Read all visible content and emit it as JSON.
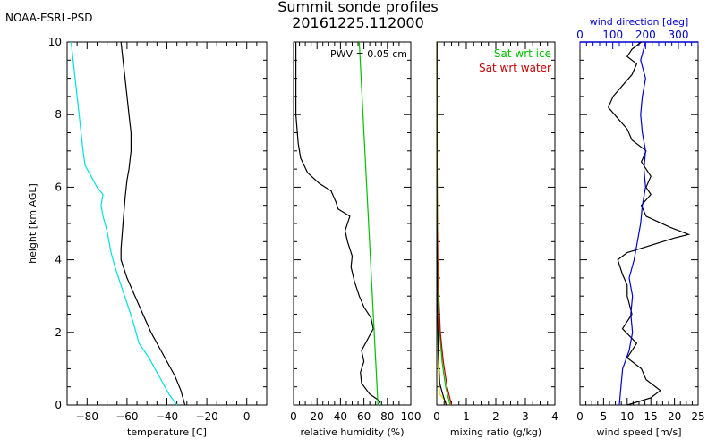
{
  "header": {
    "org": "NOAA-ESRL-PSD",
    "title_line1": "Summit sonde profiles",
    "title_line2": "20161225.112000"
  },
  "chart_data": [
    {
      "type": "line",
      "panel": "temperature",
      "xlabel": "temperature [C]",
      "ylabel": "height [km AGL]",
      "xlim": [
        -90,
        10
      ],
      "ylim": [
        0,
        10
      ],
      "xticks": [
        -80,
        -60,
        -40,
        -20,
        0
      ],
      "yticks": [
        0,
        2,
        4,
        6,
        8,
        10
      ],
      "series": [
        {
          "color": "#000000",
          "points": [
            [
              -31,
              0
            ],
            [
              -33,
              0.4
            ],
            [
              -36,
              0.8
            ],
            [
              -40,
              1.2
            ],
            [
              -44,
              1.6
            ],
            [
              -48,
              2.0
            ],
            [
              -52,
              2.5
            ],
            [
              -56,
              3.0
            ],
            [
              -60,
              3.5
            ],
            [
              -63,
              4.0
            ],
            [
              -63,
              4.3
            ],
            [
              -62,
              5.0
            ],
            [
              -61,
              5.7
            ],
            [
              -60,
              6.2
            ],
            [
              -59,
              6.5
            ],
            [
              -58,
              7.0
            ],
            [
              -58,
              7.5
            ],
            [
              -59,
              8.0
            ],
            [
              -60,
              8.5
            ],
            [
              -61,
              9.0
            ],
            [
              -62,
              9.5
            ],
            [
              -63,
              10.0
            ]
          ]
        },
        {
          "color": "#00e0e0",
          "points": [
            [
              -35,
              0
            ],
            [
              -39,
              0.3
            ],
            [
              -44,
              0.8
            ],
            [
              -49,
              1.3
            ],
            [
              -54,
              1.7
            ],
            [
              -57,
              2.3
            ],
            [
              -60,
              2.8
            ],
            [
              -63,
              3.3
            ],
            [
              -66,
              3.8
            ],
            [
              -68,
              4.2
            ],
            [
              -69,
              4.5
            ],
            [
              -70,
              4.8
            ],
            [
              -72,
              5.2
            ],
            [
              -73,
              5.5
            ],
            [
              -72,
              5.8
            ],
            [
              -75,
              6.0
            ],
            [
              -78,
              6.3
            ],
            [
              -81,
              6.6
            ],
            [
              -82,
              7.0
            ],
            [
              -83,
              7.5
            ],
            [
              -84,
              8.0
            ],
            [
              -85,
              8.5
            ],
            [
              -86,
              9.0
            ],
            [
              -87,
              9.5
            ],
            [
              -88,
              10.0
            ]
          ]
        }
      ]
    },
    {
      "type": "line",
      "panel": "relative humidity",
      "xlabel": "relative humidity (%)",
      "xlim": [
        0,
        100
      ],
      "ylim": [
        0,
        10
      ],
      "xticks": [
        0,
        20,
        40,
        60,
        80,
        100
      ],
      "annotation": "PWV = 0.05 cm",
      "series": [
        {
          "color": "#000000",
          "points": [
            [
              72,
              0
            ],
            [
              74,
              0.1
            ],
            [
              65,
              0.3
            ],
            [
              58,
              0.6
            ],
            [
              57,
              0.9
            ],
            [
              60,
              1.2
            ],
            [
              58,
              1.5
            ],
            [
              63,
              1.8
            ],
            [
              68,
              2.1
            ],
            [
              66,
              2.4
            ],
            [
              60,
              2.7
            ],
            [
              56,
              3.0
            ],
            [
              52,
              3.4
            ],
            [
              49,
              3.8
            ],
            [
              50,
              4.1
            ],
            [
              46,
              4.5
            ],
            [
              44,
              4.8
            ],
            [
              48,
              5.2
            ],
            [
              38,
              5.4
            ],
            [
              36,
              5.6
            ],
            [
              32,
              5.9
            ],
            [
              22,
              6.1
            ],
            [
              12,
              6.4
            ],
            [
              6,
              6.8
            ],
            [
              4,
              7.2
            ],
            [
              3,
              7.6
            ],
            [
              2,
              8.0
            ],
            [
              2,
              9.0
            ],
            [
              2,
              10.0
            ]
          ]
        },
        {
          "color": "#00c000",
          "points": [
            [
              72,
              0
            ],
            [
              56,
              10
            ]
          ]
        }
      ]
    },
    {
      "type": "line",
      "panel": "mixing ratio",
      "xlabel": "mixing ratio (g/kg)",
      "xlim": [
        0,
        4
      ],
      "ylim": [
        0,
        10
      ],
      "xticks": [
        0,
        1,
        2,
        3,
        4
      ],
      "series": [
        {
          "name": "Sat wrt ice",
          "color": "#00c000",
          "points": [
            [
              0.45,
              0
            ],
            [
              0.3,
              0.5
            ],
            [
              0.18,
              1.2
            ],
            [
              0.1,
              2.0
            ],
            [
              0.05,
              3.0
            ],
            [
              0.02,
              4.0
            ],
            [
              0.01,
              5.5
            ],
            [
              0.005,
              7.0
            ],
            [
              0.003,
              10.0
            ]
          ]
        },
        {
          "name": "Sat wrt water",
          "color": "#c00000",
          "points": [
            [
              0.5,
              0
            ],
            [
              0.35,
              0.5
            ],
            [
              0.22,
              1.2
            ],
            [
              0.12,
              2.0
            ],
            [
              0.07,
              3.0
            ],
            [
              0.04,
              4.0
            ],
            [
              0.02,
              5.5
            ],
            [
              0.01,
              7.0
            ],
            [
              0.006,
              10.0
            ]
          ]
        },
        {
          "color": "#e0e000",
          "points": [
            [
              0.35,
              0
            ],
            [
              0.3,
              0.1
            ],
            [
              0.2,
              0.2
            ],
            [
              0.1,
              0.3
            ],
            [
              0.05,
              1.0
            ],
            [
              0.02,
              4.0
            ],
            [
              0.01,
              10.0
            ]
          ]
        },
        {
          "color": "#000000",
          "points": [
            [
              0.32,
              0
            ],
            [
              0.2,
              0.3
            ],
            [
              0.1,
              0.6
            ],
            [
              0.05,
              1.5
            ],
            [
              0.02,
              3.0
            ],
            [
              0.01,
              5.0
            ],
            [
              0.005,
              10.0
            ]
          ]
        }
      ]
    },
    {
      "type": "line",
      "panel": "wind",
      "xlabel": "wind speed [m/s]",
      "x2label": "wind direction [deg]",
      "xlim": [
        0,
        25
      ],
      "x2lim": [
        0,
        360
      ],
      "ylim": [
        0,
        10
      ],
      "xticks": [
        0,
        5,
        10,
        15,
        20,
        25
      ],
      "x2ticks": [
        0,
        100,
        200,
        300
      ],
      "x2color": "#0000cc",
      "series": [
        {
          "name": "wind speed",
          "color": "#000000",
          "points": [
            [
              10,
              0
            ],
            [
              15,
              0.2
            ],
            [
              17,
              0.4
            ],
            [
              14,
              0.7
            ],
            [
              13,
              1.0
            ],
            [
              10,
              1.3
            ],
            [
              12,
              1.7
            ],
            [
              9,
              2.1
            ],
            [
              11,
              2.5
            ],
            [
              10,
              3.0
            ],
            [
              10,
              3.3
            ],
            [
              9,
              3.6
            ],
            [
              8,
              4.0
            ],
            [
              10,
              4.2
            ],
            [
              15,
              4.4
            ],
            [
              20,
              4.6
            ],
            [
              23,
              4.7
            ],
            [
              19,
              4.9
            ],
            [
              14,
              5.2
            ],
            [
              13,
              5.5
            ],
            [
              15,
              5.8
            ],
            [
              14,
              6.0
            ],
            [
              15,
              6.3
            ],
            [
              13,
              6.7
            ],
            [
              14,
              7.0
            ],
            [
              11,
              7.3
            ],
            [
              10,
              7.6
            ],
            [
              8,
              7.9
            ],
            [
              6,
              8.2
            ],
            [
              7,
              8.5
            ],
            [
              9,
              8.8
            ],
            [
              11,
              9.1
            ],
            [
              12,
              9.4
            ],
            [
              10,
              9.6
            ],
            [
              11,
              9.8
            ],
            [
              13,
              10.0
            ]
          ]
        },
        {
          "name": "wind direction",
          "color": "#0000cc",
          "axis": "x2",
          "points": [
            [
              120,
              0
            ],
            [
              125,
              0.5
            ],
            [
              130,
              1.0
            ],
            [
              150,
              1.5
            ],
            [
              160,
              2.0
            ],
            [
              155,
              2.5
            ],
            [
              160,
              3.0
            ],
            [
              150,
              3.5
            ],
            [
              165,
              4.0
            ],
            [
              175,
              4.5
            ],
            [
              185,
              5.0
            ],
            [
              190,
              5.5
            ],
            [
              200,
              6.0
            ],
            [
              195,
              6.5
            ],
            [
              200,
              7.0
            ],
            [
              190,
              7.5
            ],
            [
              185,
              8.0
            ],
            [
              190,
              8.5
            ],
            [
              200,
              9.0
            ],
            [
              185,
              9.5
            ],
            [
              200,
              10.0
            ]
          ]
        }
      ]
    }
  ]
}
